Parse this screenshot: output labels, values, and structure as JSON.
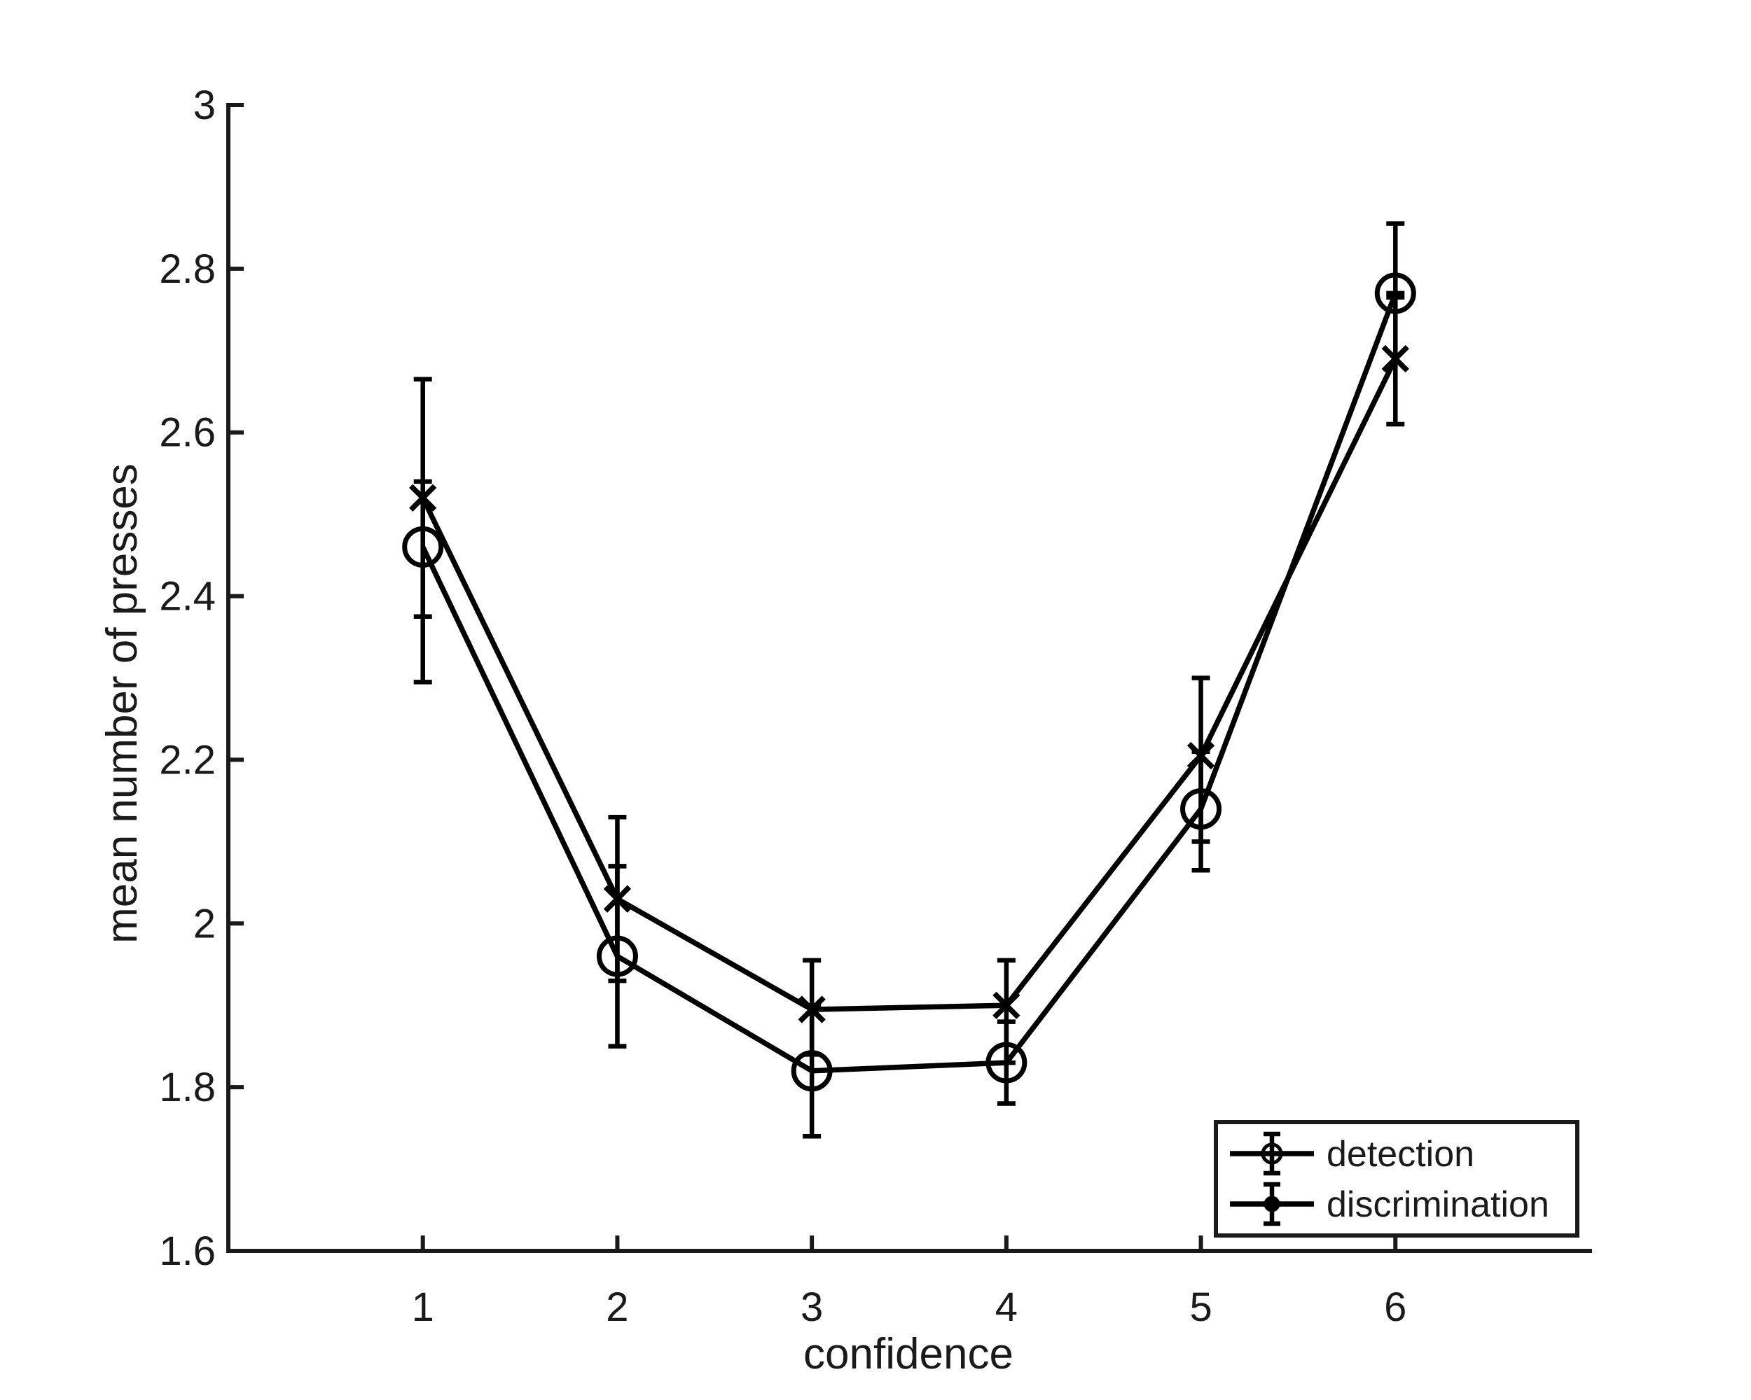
{
  "chart_data": {
    "type": "line",
    "xlabel": "confidence",
    "ylabel": "mean number of presses",
    "xlim": [
      0,
      7
    ],
    "ylim": [
      1.6,
      3.0
    ],
    "x": [
      1,
      2,
      3,
      4,
      5,
      6
    ],
    "x_ticks": [
      "1",
      "2",
      "3",
      "4",
      "5",
      "6"
    ],
    "y_ticks": [
      "1.6",
      "1.8",
      "2",
      "2.2",
      "2.4",
      "2.6",
      "2.8",
      "3"
    ],
    "grid": false,
    "legend_position": "bottom-right",
    "series": [
      {
        "name": "detection",
        "marker": "circle",
        "values": [
          2.46,
          1.96,
          1.82,
          1.83,
          2.14,
          2.77
        ],
        "err_low": [
          2.375,
          1.93,
          1.74,
          1.78,
          2.065,
          2.765
        ],
        "err_high": [
          2.54,
          2.07,
          1.9,
          1.88,
          2.21,
          2.77
        ]
      },
      {
        "name": "discrimination",
        "marker": "x",
        "values": [
          2.52,
          2.03,
          1.895,
          1.9,
          2.205,
          2.69
        ],
        "err_low": [
          2.295,
          1.85,
          1.84,
          1.83,
          2.1,
          2.61
        ],
        "err_high": [
          2.665,
          2.13,
          1.955,
          1.955,
          2.3,
          2.855
        ]
      }
    ]
  }
}
